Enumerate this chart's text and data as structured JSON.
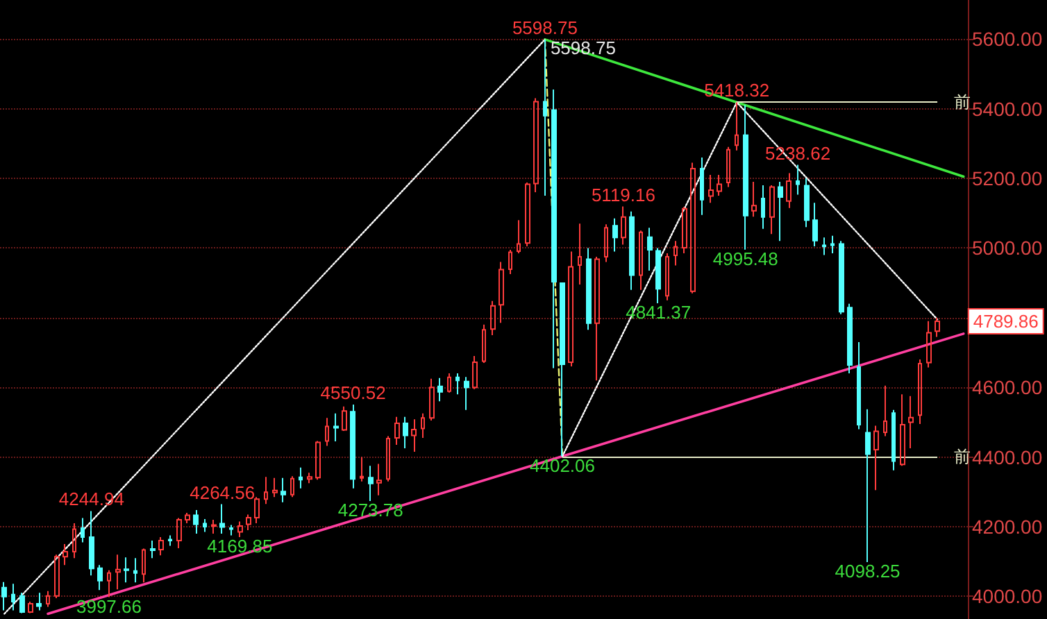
{
  "chart_data": {
    "type": "candlestick",
    "categories": [
      null,
      null,
      null,
      null,
      null,
      null,
      null,
      null,
      null,
      null,
      null,
      null,
      null,
      null,
      null,
      null,
      null,
      null,
      null,
      null,
      null,
      null,
      null,
      null,
      null,
      null,
      null,
      null,
      null,
      null,
      null,
      null,
      null,
      null,
      null,
      null,
      null,
      null,
      null,
      null,
      null,
      null,
      null,
      null,
      null,
      null,
      null,
      null,
      null,
      null,
      null,
      null,
      null,
      null,
      null,
      null,
      null,
      null,
      null,
      null,
      null,
      null,
      null,
      null,
      null,
      null,
      null,
      null,
      null,
      null,
      null,
      null,
      null,
      null,
      null,
      null,
      null,
      null,
      null,
      null,
      null,
      null,
      null,
      null,
      null,
      null,
      null,
      null,
      null,
      null,
      null,
      null,
      null,
      null,
      null,
      null,
      null,
      null,
      null,
      null,
      null,
      null,
      null,
      null,
      null,
      null,
      null,
      null,
      null,
      null,
      null
    ],
    "ohlc": [
      [
        4025,
        4041,
        3960,
        3999
      ],
      [
        4005,
        4036,
        3960,
        3985
      ],
      [
        4001,
        4010,
        3952,
        3955
      ],
      [
        3955,
        3985,
        3952,
        3979
      ],
      [
        3979,
        4010,
        3960,
        3972
      ],
      [
        3979,
        4015,
        3970,
        4001
      ],
      [
        4001,
        4120,
        3995,
        4114
      ],
      [
        4114,
        4150,
        4090,
        4128
      ],
      [
        4128,
        4210,
        4110,
        4193
      ],
      [
        4196,
        4225,
        4155,
        4170
      ],
      [
        4170,
        4244.94,
        4060,
        4080
      ],
      [
        4081,
        4090,
        4018,
        4045
      ],
      [
        4045,
        4075,
        3997.66,
        4067
      ],
      [
        4070,
        4120,
        4020,
        4077
      ],
      [
        4078,
        4112,
        4040,
        4075
      ],
      [
        4073,
        4110,
        4040,
        4067
      ],
      [
        4064,
        4137,
        4040,
        4133
      ],
      [
        4136,
        4160,
        4110,
        4132
      ],
      [
        4134,
        4170,
        4118,
        4160
      ],
      [
        4163,
        4175,
        4145,
        4160
      ],
      [
        4160,
        4225,
        4138,
        4220
      ],
      [
        4220,
        4240,
        4210,
        4233
      ],
      [
        4233,
        4248,
        4180,
        4207
      ],
      [
        4209,
        4222,
        4185,
        4200
      ],
      [
        4202,
        4220,
        4180,
        4205
      ],
      [
        4209,
        4264.56,
        4180,
        4199
      ],
      [
        4196,
        4205,
        4175,
        4193
      ],
      [
        4185,
        4215,
        4169.85,
        4202
      ],
      [
        4207,
        4235,
        4190,
        4226
      ],
      [
        4226,
        4285,
        4210,
        4279
      ],
      [
        4279,
        4343,
        4265,
        4299
      ],
      [
        4298,
        4340,
        4285,
        4304
      ],
      [
        4301,
        4340,
        4270,
        4292
      ],
      [
        4292,
        4345,
        4285,
        4338
      ],
      [
        4342,
        4370,
        4310,
        4335
      ],
      [
        4337,
        4355,
        4325,
        4343
      ],
      [
        4341,
        4446,
        4335,
        4442
      ],
      [
        4446,
        4512,
        4432,
        4488
      ],
      [
        4488,
        4525,
        4445,
        4484
      ],
      [
        4478,
        4545,
        4475,
        4532
      ],
      [
        4530,
        4550.52,
        4310,
        4337
      ],
      [
        4340,
        4400,
        4330,
        4344
      ],
      [
        4341,
        4375,
        4273.78,
        4324
      ],
      [
        4326,
        4380,
        4290,
        4333
      ],
      [
        4337,
        4460,
        4330,
        4453
      ],
      [
        4455,
        4515,
        4435,
        4497
      ],
      [
        4497,
        4515,
        4425,
        4462
      ],
      [
        4462,
        4508,
        4415,
        4479
      ],
      [
        4482,
        4525,
        4455,
        4512
      ],
      [
        4512,
        4625,
        4505,
        4600
      ],
      [
        4603,
        4627,
        4560,
        4587
      ],
      [
        4589,
        4640,
        4585,
        4629
      ],
      [
        4629,
        4640,
        4580,
        4620
      ],
      [
        4617,
        4630,
        4535,
        4600
      ],
      [
        4600,
        4690,
        4595,
        4672
      ],
      [
        4675,
        4780,
        4670,
        4765
      ],
      [
        4767,
        4848,
        4750,
        4834
      ],
      [
        4837,
        4960,
        4785,
        4938
      ],
      [
        4939,
        4995,
        4925,
        4988
      ],
      [
        4991,
        5080,
        4985,
        5012
      ],
      [
        5014,
        5188,
        5005,
        5183
      ],
      [
        5185,
        5430,
        5160,
        5420
      ],
      [
        5420,
        5598.75,
        5150,
        5380
      ],
      [
        5396,
        5455,
        4655,
        4903
      ],
      [
        4899,
        4900,
        4402.06,
        4666
      ],
      [
        4672,
        4990,
        4660,
        4946
      ],
      [
        4951,
        5070,
        4895,
        4975
      ],
      [
        4968,
        5000,
        4765,
        4784
      ],
      [
        4784,
        4975,
        4620,
        4968
      ],
      [
        4975,
        5068,
        4960,
        5058
      ],
      [
        5064,
        5085,
        4990,
        5030
      ],
      [
        5030,
        5119.16,
        5010,
        5089
      ],
      [
        5089,
        5105,
        4880,
        4922
      ],
      [
        4922,
        5050,
        4880,
        5045
      ],
      [
        5031,
        5058,
        4935,
        4995
      ],
      [
        4992,
        5000,
        4841.37,
        4883
      ],
      [
        4863,
        4985,
        4850,
        4975
      ],
      [
        4979,
        5020,
        4950,
        5004
      ],
      [
        5001,
        5118,
        4985,
        5113
      ],
      [
        4876,
        5245,
        4870,
        5228
      ],
      [
        5228,
        5260,
        5095,
        5139
      ],
      [
        5149,
        5210,
        5130,
        5166
      ],
      [
        5163,
        5210,
        5150,
        5183
      ],
      [
        5188,
        5290,
        5175,
        5282
      ],
      [
        5295,
        5418.32,
        5280,
        5324
      ],
      [
        5324,
        5410,
        4995.48,
        5093
      ],
      [
        5107,
        5190,
        5090,
        5122
      ],
      [
        5142,
        5180,
        5055,
        5089
      ],
      [
        5089,
        5180,
        5040,
        5175
      ],
      [
        5175,
        5190,
        5020,
        5146
      ],
      [
        5135,
        5215,
        5115,
        5192
      ],
      [
        5192,
        5238.62,
        5153,
        5183
      ],
      [
        5179,
        5200,
        5060,
        5080
      ],
      [
        5080,
        5130,
        5005,
        5021
      ],
      [
        5008,
        5030,
        4980,
        5005
      ],
      [
        5012,
        5035,
        4985,
        5008
      ],
      [
        5012,
        5020,
        4810,
        4817
      ],
      [
        4829,
        4840,
        4640,
        4664
      ],
      [
        4658,
        4730,
        4480,
        4493
      ],
      [
        4470,
        4537,
        4098.25,
        4408
      ],
      [
        4421,
        4490,
        4305,
        4474
      ],
      [
        4471,
        4605,
        4460,
        4503
      ],
      [
        4526,
        4535,
        4362,
        4388
      ],
      [
        4379,
        4580,
        4375,
        4493
      ],
      [
        4500,
        4575,
        4425,
        4513
      ],
      [
        4520,
        4680,
        4495,
        4668
      ],
      [
        4671,
        4790,
        4657,
        4757
      ],
      [
        4761,
        4800,
        4745,
        4789.86
      ],
      null,
      null,
      null
    ],
    "colors": [
      "#54ffff",
      "#54ffff",
      "#54ffff",
      "#ff3c3c",
      "#54ffff",
      "#ff3c3c",
      "#ff3c3c",
      "#ff3c3c",
      "#ff3c3c",
      "#54ffff",
      "#54ffff",
      "#54ffff",
      "#ff3c3c",
      "#ff3c3c",
      "#54ffff",
      "#54ffff",
      "#ff3c3c",
      "#54ffff",
      "#ff3c3c",
      "#54ffff",
      "#ff3c3c",
      "#ff3c3c",
      "#54ffff",
      "#54ffff",
      "#ff3c3c",
      "#54ffff",
      "#54ffff",
      "#ff3c3c",
      "#ff3c3c",
      "#ff3c3c",
      "#ff3c3c",
      "#ff3c3c",
      "#54ffff",
      "#ff3c3c",
      "#54ffff",
      "#ff3c3c",
      "#ff3c3c",
      "#ff3c3c",
      "#54ffff",
      "#ff3c3c",
      "#54ffff",
      "#ff3c3c",
      "#54ffff",
      "#ff3c3c",
      "#ff3c3c",
      "#ff3c3c",
      "#54ffff",
      "#ff3c3c",
      "#ff3c3c",
      "#ff3c3c",
      "#54ffff",
      "#ff3c3c",
      "#54ffff",
      "#54ffff",
      "#ff3c3c",
      "#ff3c3c",
      "#ff3c3c",
      "#ff3c3c",
      "#ff3c3c",
      "#ff3c3c",
      "#ff3c3c",
      "#ff3c3c",
      "#54ffff",
      "#54ffff",
      "#54ffff",
      "#ff3c3c",
      "#ff3c3c",
      "#54ffff",
      "#ff3c3c",
      "#ff3c3c",
      "#54ffff",
      "#ff3c3c",
      "#54ffff",
      "#ff3c3c",
      "#54ffff",
      "#54ffff",
      "#ff3c3c",
      "#ff3c3c",
      "#ff3c3c",
      "#ff3c3c",
      "#54ffff",
      "#ff3c3c",
      "#ff3c3c",
      "#ff3c3c",
      "#ff3c3c",
      "#54ffff",
      "#ff3c3c",
      "#54ffff",
      "#ff3c3c",
      "#54ffff",
      "#ff3c3c",
      "#54ffff",
      "#54ffff",
      "#54ffff",
      "#54ffff",
      "#54ffff",
      "#54ffff",
      "#54ffff",
      "#54ffff",
      "#54ffff",
      "#ff3c3c",
      "#ff3c3c",
      "#54ffff",
      "#ff3c3c",
      "#ff3c3c",
      "#ff3c3c",
      "#ff3c3c",
      "#ff3c3c",
      null,
      null,
      null
    ],
    "series": [
      {
        "type": "line",
        "color": "#ff3fa0",
        "line_style": "solid",
        "values": [
          null,
          null,
          null,
          null,
          null,
          3950,
          null,
          null,
          null,
          null,
          null,
          null,
          null,
          null,
          null,
          null,
          null,
          null,
          null,
          null,
          null,
          null,
          null,
          null,
          null,
          null,
          null,
          null,
          null,
          null,
          null,
          null,
          null,
          null,
          null,
          null,
          null,
          null,
          null,
          null,
          null,
          null,
          null,
          null,
          null,
          null,
          null,
          null,
          null,
          null,
          null,
          null,
          null,
          null,
          null,
          null,
          null,
          null,
          null,
          null,
          null,
          null,
          null,
          null,
          4402.06,
          null,
          null,
          null,
          null,
          null,
          null,
          null,
          null,
          null,
          null,
          null,
          null,
          null,
          null,
          null,
          null,
          null,
          null,
          null,
          null,
          null,
          null,
          null,
          null,
          null,
          null,
          null,
          null,
          null,
          null,
          null,
          null,
          null,
          null,
          null,
          null,
          null,
          null,
          null,
          null,
          null,
          null,
          null,
          null,
          null,
          4754
        ]
      },
      {
        "type": "line",
        "color": "#3ee83e",
        "line_style": "solid",
        "values": [
          null,
          null,
          null,
          null,
          null,
          null,
          null,
          null,
          null,
          null,
          null,
          null,
          null,
          null,
          null,
          null,
          null,
          null,
          null,
          null,
          null,
          null,
          null,
          null,
          null,
          null,
          null,
          null,
          null,
          null,
          null,
          null,
          null,
          null,
          null,
          null,
          null,
          null,
          null,
          null,
          null,
          null,
          null,
          null,
          null,
          null,
          null,
          null,
          null,
          null,
          null,
          null,
          null,
          null,
          null,
          null,
          null,
          null,
          null,
          null,
          null,
          null,
          5598.75,
          null,
          null,
          null,
          null,
          null,
          null,
          null,
          null,
          null,
          null,
          null,
          null,
          null,
          null,
          null,
          null,
          null,
          null,
          null,
          null,
          null,
          5418.32,
          null,
          null,
          null,
          null,
          null,
          null,
          null,
          null,
          null,
          null,
          null,
          null,
          null,
          null,
          null,
          null,
          null,
          null,
          null,
          null,
          null,
          null,
          null,
          null,
          null,
          5205
        ]
      },
      {
        "type": "line",
        "color": "#ffffff",
        "line_style": "dotted",
        "values": [
          3950,
          null,
          null,
          null,
          null,
          null,
          null,
          null,
          null,
          null,
          null,
          null,
          null,
          null,
          null,
          null,
          null,
          null,
          null,
          null,
          null,
          null,
          null,
          null,
          null,
          null,
          null,
          null,
          null,
          null,
          null,
          null,
          null,
          null,
          null,
          null,
          null,
          null,
          null,
          null,
          null,
          null,
          null,
          null,
          null,
          null,
          null,
          null,
          null,
          null,
          null,
          null,
          null,
          null,
          null,
          null,
          null,
          null,
          null,
          null,
          null,
          null,
          5598.75,
          null,
          null,
          null,
          null,
          null,
          null,
          null,
          null,
          null,
          null,
          null,
          null,
          null,
          null,
          null,
          null,
          null,
          null,
          null,
          null,
          null,
          null,
          null,
          null,
          null,
          null,
          null,
          null,
          null,
          null,
          null,
          null,
          null,
          null,
          null,
          null,
          null,
          null,
          null,
          null,
          null,
          null,
          null,
          null,
          null,
          null,
          null,
          null
        ]
      },
      {
        "type": "line",
        "color": "#e8f070",
        "line_style": "dashed",
        "values": [
          null,
          null,
          null,
          null,
          null,
          null,
          null,
          null,
          null,
          null,
          null,
          null,
          null,
          null,
          null,
          null,
          null,
          null,
          null,
          null,
          null,
          null,
          null,
          null,
          null,
          null,
          null,
          null,
          null,
          null,
          null,
          null,
          null,
          null,
          null,
          null,
          null,
          null,
          null,
          null,
          null,
          null,
          null,
          null,
          null,
          null,
          null,
          null,
          null,
          null,
          null,
          null,
          null,
          null,
          null,
          null,
          null,
          null,
          null,
          null,
          null,
          null,
          5598.75,
          null,
          4402.06,
          null,
          null,
          null,
          null,
          null,
          null,
          null,
          null,
          null,
          null,
          null,
          null,
          null,
          null,
          null,
          null,
          null,
          null,
          null,
          null,
          null,
          null,
          null,
          null,
          null,
          null,
          null,
          null,
          null,
          null,
          null,
          null,
          null,
          null,
          null,
          null,
          null,
          null,
          null,
          null,
          null,
          null,
          null,
          null,
          null,
          null
        ]
      },
      {
        "type": "line",
        "color": "#ffffff",
        "line_style": "dotted",
        "values": [
          null,
          null,
          null,
          null,
          null,
          null,
          null,
          null,
          null,
          null,
          null,
          null,
          null,
          null,
          null,
          null,
          null,
          null,
          null,
          null,
          null,
          null,
          null,
          null,
          null,
          null,
          null,
          null,
          null,
          null,
          null,
          null,
          null,
          null,
          null,
          null,
          null,
          null,
          null,
          null,
          null,
          null,
          null,
          null,
          null,
          null,
          null,
          null,
          null,
          null,
          null,
          null,
          null,
          null,
          null,
          null,
          null,
          null,
          null,
          null,
          null,
          null,
          null,
          null,
          4402.06,
          null,
          null,
          null,
          null,
          null,
          null,
          null,
          null,
          null,
          null,
          null,
          null,
          null,
          null,
          null,
          null,
          null,
          null,
          null,
          5418.32,
          null,
          null,
          null,
          null,
          null,
          null,
          null,
          null,
          null,
          null,
          null,
          null,
          null,
          null,
          null,
          null,
          null,
          null,
          null,
          null,
          null,
          null,
          4795,
          null,
          null,
          null
        ]
      }
    ],
    "ylim": [
      3935,
      5712
    ],
    "yticks": [
      {
        "value": 4000,
        "label": "4000.00"
      },
      {
        "value": 4200,
        "label": "4200.00"
      },
      {
        "value": 4400,
        "label": "4400.00"
      },
      {
        "value": 4600,
        "label": "4600.00"
      },
      {
        "value": 4800,
        "label": null
      },
      {
        "value": 5000,
        "label": "5000.00"
      },
      {
        "value": 5200,
        "label": "5200.00"
      },
      {
        "value": 5400,
        "label": "5400.00"
      },
      {
        "value": 5600,
        "label": "5600.00"
      }
    ],
    "grid": "y",
    "tick_labels": "y",
    "ref_lines": [
      {
        "axis": "y",
        "value": 5418.32,
        "label": "前",
        "color": "#e8ecc8"
      },
      {
        "axis": "y",
        "value": 4402.06,
        "label": "前",
        "color": "#e8ecc8"
      }
    ],
    "annotations": [
      {
        "text": "4244.94",
        "y": 4244.94
      },
      {
        "text": "4264.56",
        "y": 4264.56
      },
      {
        "text": "3997.66",
        "y": 3997.66
      },
      {
        "text": "4169.85",
        "y": 4169.85
      },
      {
        "text": "4550.52",
        "y": 4550.52
      },
      {
        "text": "4273.78",
        "y": 4273.78
      },
      "5598.75",
      "5598.75",
      {
        "text": "4402.06",
        "y": 4402.06
      },
      {
        "text": "5119.16",
        "y": 5119.16
      },
      {
        "text": "4841.37",
        "y": 4841.37
      },
      {
        "text": "5418.32",
        "y": 5418.32
      },
      {
        "text": "4995.48",
        "y": 4995.48
      },
      {
        "text": "5238.62",
        "y": 5238.62
      },
      {
        "text": "4098.25",
        "y": 4098.25
      },
      "4789.86"
    ]
  }
}
